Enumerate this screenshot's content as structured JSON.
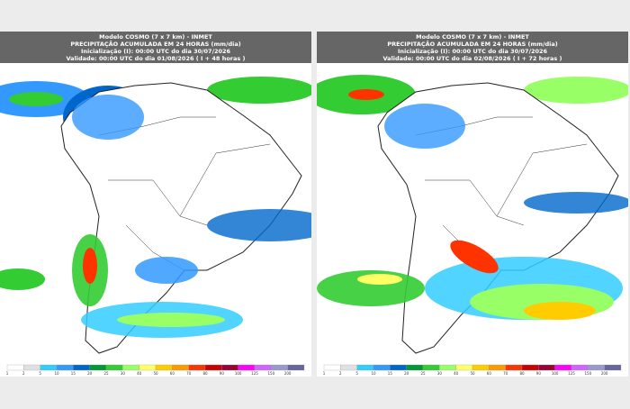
{
  "panels": [
    {
      "model": "Modelo COSMO (7 x 7 km) - INMET",
      "title": "PRECIPITAÇÃO ACUMULADA EM 24 HORAS (mm/dia)",
      "init": "Inicialização (I): 00:00 UTC do dia 30/07/2026",
      "valid": "Validade: 00:00 UTC do dia 01/08/2026 ( I + 48 horas )"
    },
    {
      "model": "Modelo COSMO (7 x 7 km) - INMET",
      "title": "PRECIPITAÇÃO ACUMULADA EM 24 HORAS (mm/dia)",
      "init": "Inicialização (I): 00:00 UTC do dia 30/07/2026",
      "valid": "Validade: 00:00 UTC do dia 02/08/2026 ( I + 72 horas )"
    }
  ],
  "colorbar": {
    "labels": [
      "1",
      "2",
      "5",
      "10",
      "15",
      "20",
      "25",
      "30",
      "40",
      "50",
      "60",
      "70",
      "80",
      "90",
      "100",
      "125",
      "150",
      "200"
    ],
    "colors": [
      "#ffffff",
      "#e0e0e0",
      "#33ccff",
      "#3399ff",
      "#0066cc",
      "#009933",
      "#33cc33",
      "#99ff66",
      "#ffff66",
      "#ffcc00",
      "#ff9900",
      "#ff3300",
      "#cc0000",
      "#990033",
      "#ff00ff",
      "#cc66ff",
      "#9999cc",
      "#666699"
    ]
  }
}
